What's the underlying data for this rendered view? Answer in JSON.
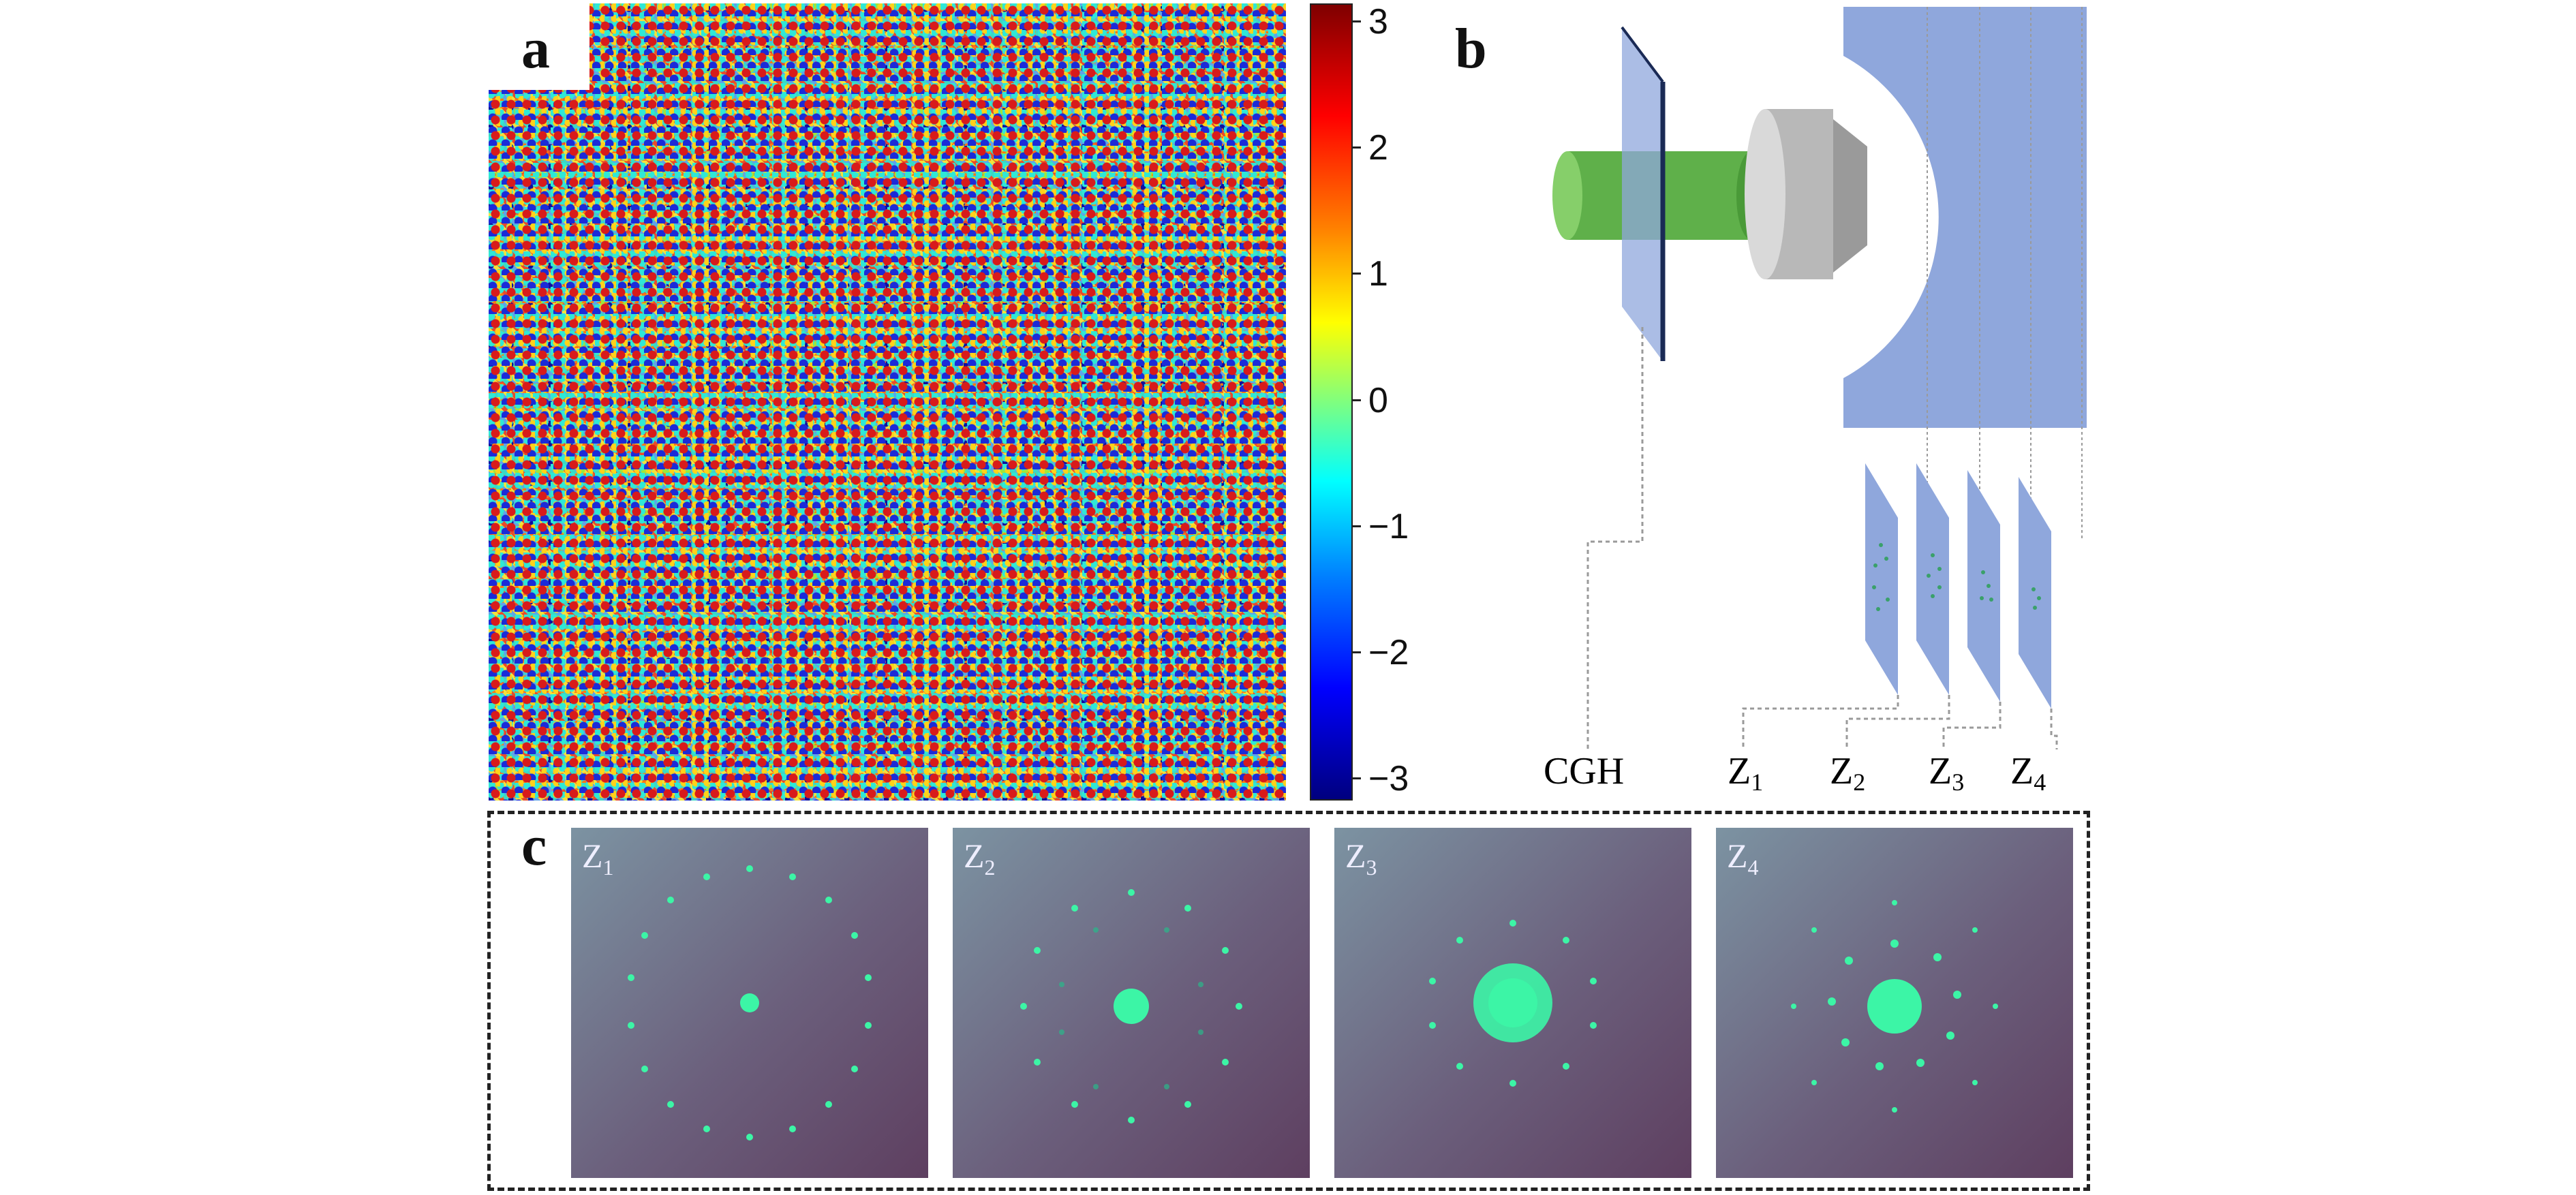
{
  "panels": {
    "a": {
      "label": "a"
    },
    "b": {
      "label": "b"
    },
    "c": {
      "label": "c"
    }
  },
  "colorbar": {
    "ticks": [
      "3",
      "2",
      "1",
      "0",
      "−1",
      "−2",
      "−3"
    ]
  },
  "schematic": {
    "cgh_label": "CGH",
    "planes": [
      {
        "main": "Z",
        "sub": "1"
      },
      {
        "main": "Z",
        "sub": "2"
      },
      {
        "main": "Z",
        "sub": "3"
      },
      {
        "main": "Z",
        "sub": "4"
      }
    ]
  },
  "photos": [
    {
      "main": "Z",
      "sub": "1"
    },
    {
      "main": "Z",
      "sub": "2"
    },
    {
      "main": "Z",
      "sub": "3"
    },
    {
      "main": "Z",
      "sub": "4"
    }
  ],
  "colors": {
    "beam": "#5fb04a",
    "optics": "#8fa7dc",
    "spot": "#3cf5a6"
  }
}
